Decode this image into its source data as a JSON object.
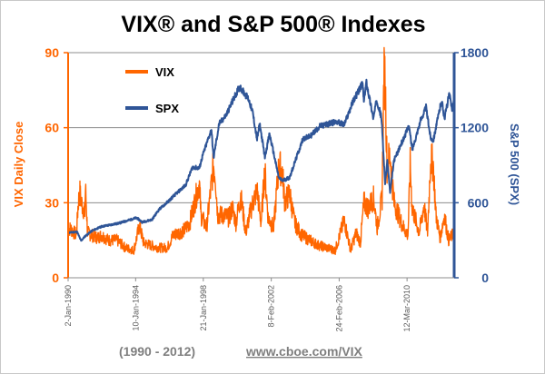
{
  "chart_data": {
    "type": "line",
    "title": "VIX® and S&P 500® Indexes",
    "left_axis": {
      "label": "VIX Daily Close",
      "ticks": [
        0,
        30,
        60,
        90
      ],
      "range": [
        0,
        90
      ],
      "color": "#ff6600"
    },
    "right_axis": {
      "label": "S&P 500 (SPX)",
      "ticks": [
        0,
        600,
        1200,
        1800
      ],
      "range": [
        0,
        1800
      ],
      "color": "#2f5597"
    },
    "x_axis": {
      "range": [
        "1990-01-02",
        "2012-12-31"
      ],
      "tick_labels": [
        {
          "date": "1990-01-02",
          "label": "2-Jan-1990"
        },
        {
          "date": "1994-01-10",
          "label": "10-Jan-1994"
        },
        {
          "date": "1998-01-21",
          "label": "21-Jan-1998"
        },
        {
          "date": "2002-02-08",
          "label": "8-Feb-2002"
        },
        {
          "date": "2006-02-24",
          "label": "24-Feb-2006"
        },
        {
          "date": "2010-03-12",
          "label": "12-Mar-2010"
        }
      ]
    },
    "grid": "horizontal",
    "legend_position": "top-left",
    "series": [
      {
        "name": "VIX",
        "axis": "left",
        "color": "#ff6600",
        "points": [
          [
            "1990-01-02",
            20
          ],
          [
            "1990-04-01",
            19
          ],
          [
            "1990-07-01",
            17
          ],
          [
            "1990-08-10",
            30
          ],
          [
            "1990-09-15",
            34
          ],
          [
            "1990-10-20",
            30
          ],
          [
            "1990-12-31",
            26
          ],
          [
            "1991-01-15",
            36
          ],
          [
            "1991-03-01",
            18
          ],
          [
            "1991-06-01",
            17
          ],
          [
            "1991-10-01",
            16
          ],
          [
            "1992-01-01",
            17
          ],
          [
            "1992-06-01",
            15
          ],
          [
            "1992-12-01",
            15
          ],
          [
            "1993-06-01",
            12
          ],
          [
            "1993-12-01",
            11
          ],
          [
            "1994-04-05",
            21
          ],
          [
            "1994-07-01",
            14
          ],
          [
            "1994-12-01",
            13
          ],
          [
            "1995-06-01",
            12
          ],
          [
            "1995-12-01",
            12
          ],
          [
            "1996-04-01",
            17
          ],
          [
            "1996-08-01",
            18
          ],
          [
            "1996-12-01",
            19
          ],
          [
            "1997-04-01",
            22
          ],
          [
            "1997-10-28",
            38
          ],
          [
            "1997-12-01",
            25
          ],
          [
            "1998-04-01",
            20
          ],
          [
            "1998-08-31",
            45
          ],
          [
            "1998-10-08",
            41
          ],
          [
            "1998-12-01",
            25
          ],
          [
            "1999-04-01",
            25
          ],
          [
            "1999-08-01",
            24
          ],
          [
            "1999-10-15",
            28
          ],
          [
            "2000-01-01",
            22
          ],
          [
            "2000-04-14",
            33
          ],
          [
            "2000-08-01",
            18
          ],
          [
            "2000-12-01",
            28
          ],
          [
            "2001-04-04",
            35
          ],
          [
            "2001-07-01",
            22
          ],
          [
            "2001-09-20",
            43
          ],
          [
            "2001-12-01",
            24
          ],
          [
            "2002-04-01",
            20
          ],
          [
            "2002-07-24",
            45
          ],
          [
            "2002-10-09",
            42
          ],
          [
            "2002-12-01",
            30
          ],
          [
            "2003-03-11",
            34
          ],
          [
            "2003-07-01",
            22
          ],
          [
            "2003-12-01",
            17
          ],
          [
            "2004-06-01",
            15
          ],
          [
            "2004-12-01",
            13
          ],
          [
            "2005-06-01",
            12
          ],
          [
            "2005-12-01",
            11
          ],
          [
            "2006-06-13",
            23
          ],
          [
            "2006-11-01",
            11
          ],
          [
            "2007-02-27",
            18
          ],
          [
            "2007-06-01",
            14
          ],
          [
            "2007-08-15",
            30
          ],
          [
            "2007-11-15",
            28
          ],
          [
            "2008-03-17",
            32
          ],
          [
            "2008-06-01",
            20
          ],
          [
            "2008-09-15",
            32
          ],
          [
            "2008-10-24",
            80
          ],
          [
            "2008-11-20",
            80
          ],
          [
            "2009-01-01",
            45
          ],
          [
            "2009-03-09",
            49
          ],
          [
            "2009-06-01",
            30
          ],
          [
            "2009-12-01",
            21
          ],
          [
            "2010-04-01",
            17
          ],
          [
            "2010-05-20",
            45
          ],
          [
            "2010-07-01",
            28
          ],
          [
            "2010-12-01",
            18
          ],
          [
            "2011-03-16",
            29
          ],
          [
            "2011-06-01",
            18
          ],
          [
            "2011-08-08",
            48
          ],
          [
            "2011-10-03",
            45
          ],
          [
            "2011-12-01",
            25
          ],
          [
            "2012-03-01",
            16
          ],
          [
            "2012-06-01",
            25
          ],
          [
            "2012-09-01",
            15
          ],
          [
            "2012-12-31",
            18
          ]
        ]
      },
      {
        "name": "SPX",
        "axis": "right",
        "color": "#2f5597",
        "points": [
          [
            "1990-01-02",
            360
          ],
          [
            "1990-07-16",
            368
          ],
          [
            "1990-10-11",
            295
          ],
          [
            "1991-01-01",
            330
          ],
          [
            "1991-06-01",
            375
          ],
          [
            "1992-01-01",
            410
          ],
          [
            "1993-01-01",
            435
          ],
          [
            "1994-01-31",
            480
          ],
          [
            "1994-06-01",
            445
          ],
          [
            "1995-01-01",
            465
          ],
          [
            "1995-06-01",
            545
          ],
          [
            "1995-12-31",
            615
          ],
          [
            "1996-06-01",
            670
          ],
          [
            "1996-12-31",
            740
          ],
          [
            "1997-06-01",
            885
          ],
          [
            "1997-10-27",
            876
          ],
          [
            "1997-12-31",
            970
          ],
          [
            "1998-07-17",
            1186
          ],
          [
            "1998-08-31",
            957
          ],
          [
            "1998-12-31",
            1229
          ],
          [
            "1999-06-01",
            1300
          ],
          [
            "1999-12-31",
            1469
          ],
          [
            "2000-03-24",
            1527
          ],
          [
            "2000-10-01",
            1430
          ],
          [
            "2001-01-01",
            1320
          ],
          [
            "2001-04-04",
            1105
          ],
          [
            "2001-06-01",
            1230
          ],
          [
            "2001-09-21",
            966
          ],
          [
            "2002-01-01",
            1150
          ],
          [
            "2002-07-23",
            797
          ],
          [
            "2002-10-09",
            777
          ],
          [
            "2003-03-11",
            800
          ],
          [
            "2003-12-31",
            1112
          ],
          [
            "2004-06-01",
            1130
          ],
          [
            "2004-12-31",
            1212
          ],
          [
            "2005-12-31",
            1248
          ],
          [
            "2006-06-13",
            1223
          ],
          [
            "2006-12-31",
            1418
          ],
          [
            "2007-07-19",
            1553
          ],
          [
            "2007-08-16",
            1406
          ],
          [
            "2007-10-09",
            1565
          ],
          [
            "2008-03-10",
            1273
          ],
          [
            "2008-05-19",
            1426
          ],
          [
            "2008-09-01",
            1280
          ],
          [
            "2008-11-20",
            752
          ],
          [
            "2009-01-06",
            935
          ],
          [
            "2009-03-09",
            676
          ],
          [
            "2009-06-01",
            940
          ],
          [
            "2009-12-31",
            1115
          ],
          [
            "2010-04-23",
            1217
          ],
          [
            "2010-07-02",
            1022
          ],
          [
            "2010-12-31",
            1258
          ],
          [
            "2011-04-29",
            1363
          ],
          [
            "2011-08-08",
            1119
          ],
          [
            "2011-10-03",
            1099
          ],
          [
            "2011-12-31",
            1257
          ],
          [
            "2012-04-02",
            1419
          ],
          [
            "2012-06-04",
            1278
          ],
          [
            "2012-09-14",
            1465
          ],
          [
            "2012-11-15",
            1353
          ],
          [
            "2012-12-31",
            1426
          ]
        ]
      }
    ]
  },
  "footer": {
    "period": "(1990 - 2012)",
    "link": "www.cboe.com/VIX"
  }
}
